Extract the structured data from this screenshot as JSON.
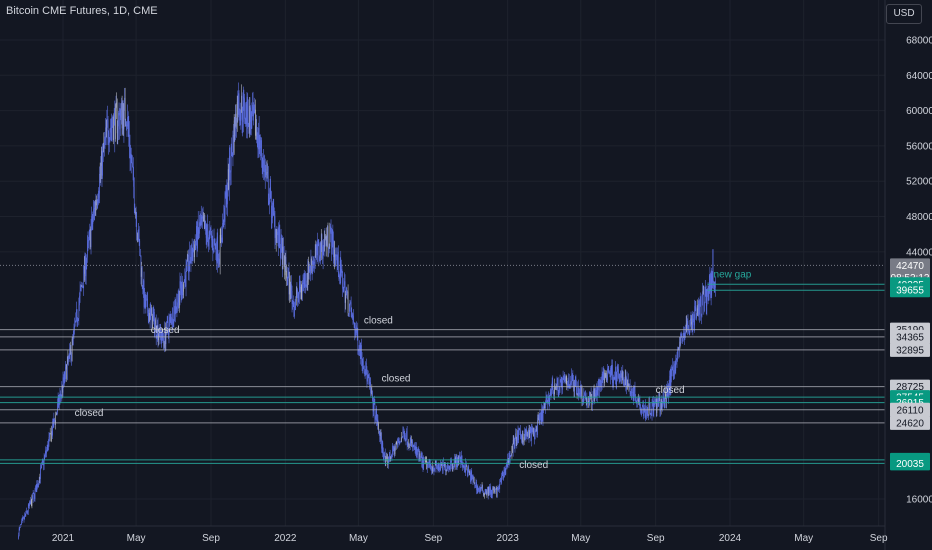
{
  "header": {
    "title": "Bitcoin CME Futures, 1D, CME",
    "currency_button": "USD"
  },
  "colors": {
    "background": "#131722",
    "candle": "#5b6ee1",
    "candle_light": "#b2b5be",
    "closed_gap_line": "#b2b5be",
    "open_gap_line": "#26a69a",
    "new_gap_text": "#26a69a",
    "axis_text": "#d1d4dc",
    "price_badge": "#c8cad1",
    "open_badge": "#089981",
    "last_price_badge": "#787b86"
  },
  "chart_data": {
    "type": "candlestick",
    "title": "Bitcoin CME Futures, 1D, CME",
    "x_tick_labels": [
      "2021",
      "May",
      "Sep",
      "2022",
      "May",
      "Sep",
      "2023",
      "May",
      "Sep",
      "2024",
      "May",
      "Sep"
    ],
    "y_tick_labels": [
      16000,
      44000,
      48000,
      52000,
      56000,
      60000,
      64000,
      68000
    ],
    "ylim": [
      14000,
      70000
    ],
    "grid": true,
    "series": [
      {
        "values_approx_monthly": [
          [
            "2020-10",
            11500
          ],
          [
            "2020-11",
            16500
          ],
          [
            "2020-12",
            24000
          ],
          [
            "2021-01",
            33000
          ],
          [
            "2021-02",
            46000
          ],
          [
            "2021-03",
            58000
          ],
          [
            "2021-04",
            60000
          ],
          [
            "2021-05",
            38000
          ],
          [
            "2021-06",
            34000
          ],
          [
            "2021-07",
            40000
          ],
          [
            "2021-08",
            47000
          ],
          [
            "2021-09",
            44000
          ],
          [
            "2021-10",
            61000
          ],
          [
            "2021-11",
            58000
          ],
          [
            "2021-12",
            47000
          ],
          [
            "2022-01",
            38000
          ],
          [
            "2022-02",
            43000
          ],
          [
            "2022-03",
            46000
          ],
          [
            "2022-04",
            38000
          ],
          [
            "2022-05",
            30000
          ],
          [
            "2022-06",
            20000
          ],
          [
            "2022-07",
            23500
          ],
          [
            "2022-08",
            20000
          ],
          [
            "2022-09",
            19500
          ],
          [
            "2022-10",
            20500
          ],
          [
            "2022-11",
            17000
          ],
          [
            "2022-12",
            16800
          ],
          [
            "2023-01",
            23000
          ],
          [
            "2023-02",
            23500
          ],
          [
            "2023-03",
            28500
          ],
          [
            "2023-04",
            29500
          ],
          [
            "2023-05",
            27000
          ],
          [
            "2023-06",
            30500
          ],
          [
            "2023-07",
            29300
          ],
          [
            "2023-08",
            26000
          ],
          [
            "2023-09",
            27000
          ],
          [
            "2023-10",
            34500
          ],
          [
            "2023-11",
            38000
          ],
          [
            "2023-12",
            42470
          ]
        ]
      }
    ],
    "gap_levels": [
      {
        "price": 40325,
        "state": "open",
        "badge": "40325"
      },
      {
        "price": 39655,
        "state": "open",
        "badge": "39655"
      },
      {
        "price": 35190,
        "state": "closed",
        "badge": "35190"
      },
      {
        "price": 34365,
        "state": "closed",
        "badge": "34365"
      },
      {
        "price": 32895,
        "state": "closed",
        "badge": "32895"
      },
      {
        "price": 28725,
        "state": "closed",
        "badge": "28725"
      },
      {
        "price": 27545,
        "state": "open",
        "badge": "27545"
      },
      {
        "price": 26915,
        "state": "open",
        "badge": "26915"
      },
      {
        "price": 26110,
        "state": "closed",
        "badge": "26110"
      },
      {
        "price": 24620,
        "state": "closed",
        "badge": "24620"
      },
      {
        "price": 20430,
        "state": "open",
        "badge": "20430"
      },
      {
        "price": 20035,
        "state": "open",
        "badge": "20035"
      }
    ],
    "last_price": {
      "value": "42470",
      "countdown": "08:52:12"
    },
    "annotations": [
      {
        "text": "closed",
        "date": "2021-05-25",
        "price": 34800
      },
      {
        "text": "closed",
        "date": "2022-05-10",
        "price": 35900
      },
      {
        "text": "closed",
        "date": "2022-06-08",
        "price": 29300
      },
      {
        "text": "closed",
        "date": "2021-01-20",
        "price": 25400
      },
      {
        "text": "closed",
        "date": "2023-01-20",
        "price": 19500
      },
      {
        "text": "closed",
        "date": "2023-09-01",
        "price": 28000
      },
      {
        "text": "new gap",
        "date": "2023-12-05",
        "price": 41100
      }
    ]
  }
}
